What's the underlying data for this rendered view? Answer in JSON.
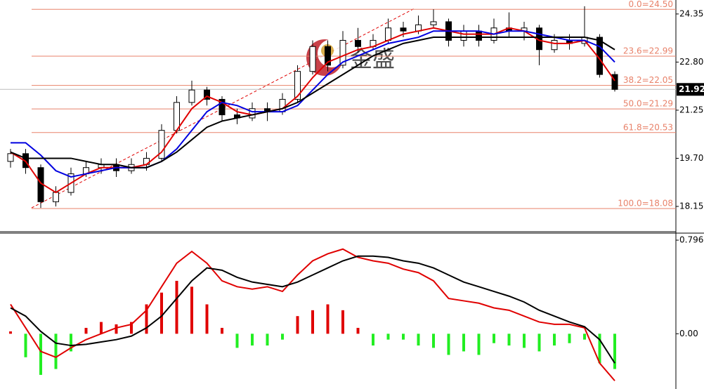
{
  "watermark": "金盛",
  "chart_data": [
    {
      "type": "candlestick",
      "ylim": [
        17.38,
        24.8
      ],
      "yticks": [
        24.35,
        {
          "value": 22.8,
          "label": "22.80"
        },
        21.25,
        {
          "value": 19.7,
          "label": "19.70"
        },
        18.15
      ],
      "current_price": 21.92,
      "fib_color": "#e8826a",
      "fib_levels": [
        {
          "value": 24.5,
          "label": "0.0=24.50"
        },
        {
          "value": 22.99,
          "label": "23.6=22.99"
        },
        {
          "value": 22.05,
          "label": "38.2=22.05"
        },
        {
          "value": 21.29,
          "label": "50.0=21.29"
        },
        {
          "value": 20.53,
          "label": "61.8=20.53"
        },
        {
          "value": 18.08,
          "label": "100.0=18.08"
        }
      ],
      "open": [
        19.6,
        19.85,
        19.4,
        18.3,
        18.6,
        19.2,
        19.4,
        19.5,
        19.3,
        19.5,
        19.7,
        20.6,
        21.5,
        21.9,
        21.6,
        21.1,
        21.0,
        21.3,
        21.2,
        21.6,
        22.5,
        23.3,
        22.7,
        23.5,
        23.3,
        23.5,
        23.9,
        23.8,
        24.0,
        24.1,
        23.5,
        23.8,
        23.5,
        23.9,
        23.8,
        23.9,
        23.2,
        23.5,
        23.4,
        23.6,
        22.4
      ],
      "high": [
        20.0,
        20.0,
        19.5,
        18.8,
        19.4,
        19.6,
        19.7,
        19.7,
        19.7,
        19.9,
        20.8,
        21.7,
        22.2,
        22.0,
        21.7,
        21.3,
        21.5,
        21.5,
        21.8,
        22.7,
        23.5,
        23.5,
        23.8,
        23.9,
        23.7,
        24.2,
        24.1,
        24.3,
        24.5,
        24.2,
        24.0,
        24.0,
        24.2,
        24.4,
        24.1,
        24.0,
        23.7,
        23.7,
        24.6,
        23.7,
        22.5
      ],
      "low": [
        19.4,
        19.2,
        18.1,
        18.15,
        18.5,
        19.1,
        19.2,
        19.1,
        19.2,
        19.3,
        19.6,
        20.5,
        21.4,
        21.4,
        20.9,
        20.8,
        20.9,
        20.9,
        21.1,
        21.5,
        22.4,
        22.5,
        22.6,
        23.1,
        23.2,
        23.4,
        23.6,
        23.7,
        23.9,
        23.3,
        23.3,
        23.3,
        23.4,
        23.6,
        23.5,
        22.7,
        23.1,
        23.2,
        23.3,
        22.3,
        21.85
      ],
      "close": [
        19.85,
        19.4,
        18.3,
        18.6,
        19.2,
        19.4,
        19.5,
        19.3,
        19.5,
        19.7,
        20.6,
        21.5,
        21.9,
        21.6,
        21.1,
        21.0,
        21.3,
        21.2,
        21.6,
        22.5,
        23.3,
        22.7,
        23.5,
        23.3,
        23.5,
        23.9,
        23.8,
        24.0,
        24.1,
        23.5,
        23.8,
        23.5,
        23.9,
        23.8,
        23.9,
        23.2,
        23.5,
        23.4,
        23.6,
        22.4,
        21.92
      ],
      "ma_lines": [
        {
          "color": "#e00000",
          "values": [
            19.9,
            19.6,
            18.9,
            18.6,
            18.9,
            19.2,
            19.4,
            19.4,
            19.4,
            19.5,
            19.9,
            20.6,
            21.3,
            21.7,
            21.5,
            21.2,
            21.1,
            21.2,
            21.3,
            21.7,
            22.3,
            22.8,
            23.0,
            23.2,
            23.3,
            23.5,
            23.7,
            23.8,
            23.9,
            23.8,
            23.7,
            23.7,
            23.7,
            23.9,
            23.8,
            23.5,
            23.4,
            23.4,
            23.5,
            22.9,
            22.2
          ]
        },
        {
          "color": "#0000e0",
          "values": [
            20.2,
            20.2,
            19.8,
            19.3,
            19.1,
            19.2,
            19.3,
            19.4,
            19.4,
            19.4,
            19.6,
            20.0,
            20.6,
            21.2,
            21.5,
            21.4,
            21.2,
            21.2,
            21.2,
            21.4,
            21.9,
            22.4,
            22.8,
            23.0,
            23.2,
            23.4,
            23.5,
            23.6,
            23.8,
            23.8,
            23.8,
            23.8,
            23.7,
            23.8,
            23.8,
            23.7,
            23.6,
            23.5,
            23.5,
            23.3,
            22.8
          ]
        },
        {
          "color": "#000000",
          "values": [
            19.9,
            19.7,
            19.7,
            19.7,
            19.7,
            19.6,
            19.5,
            19.5,
            19.4,
            19.4,
            19.6,
            19.9,
            20.3,
            20.7,
            20.9,
            21.0,
            21.1,
            21.2,
            21.3,
            21.5,
            21.8,
            22.1,
            22.4,
            22.7,
            23.0,
            23.2,
            23.4,
            23.5,
            23.6,
            23.6,
            23.6,
            23.6,
            23.6,
            23.6,
            23.6,
            23.6,
            23.6,
            23.6,
            23.6,
            23.5,
            23.2
          ]
        }
      ]
    },
    {
      "type": "macd",
      "ylim": [
        -0.47,
        0.85
      ],
      "yticks": [
        0.796,
        {
          "value": 0,
          "label": "0.00"
        }
      ],
      "up_color": "#e00000",
      "down_color": "#22ee22",
      "histogram": [
        0.02,
        -0.2,
        -0.35,
        -0.3,
        -0.15,
        0.05,
        0.1,
        0.08,
        0.1,
        0.25,
        0.35,
        0.45,
        0.4,
        0.25,
        0.05,
        -0.12,
        -0.1,
        -0.1,
        -0.05,
        0.15,
        0.2,
        0.25,
        0.2,
        0.05,
        -0.1,
        -0.05,
        -0.05,
        -0.1,
        -0.12,
        -0.18,
        -0.15,
        -0.18,
        -0.08,
        -0.1,
        -0.12,
        -0.15,
        -0.1,
        -0.08,
        -0.05,
        -0.25,
        -0.3
      ],
      "lines": [
        {
          "color": "#e00000",
          "values": [
            0.25,
            0.05,
            -0.15,
            -0.2,
            -0.12,
            -0.05,
            0.0,
            0.05,
            0.08,
            0.2,
            0.4,
            0.6,
            0.7,
            0.6,
            0.45,
            0.4,
            0.38,
            0.4,
            0.36,
            0.5,
            0.62,
            0.68,
            0.72,
            0.65,
            0.62,
            0.6,
            0.55,
            0.52,
            0.45,
            0.3,
            0.28,
            0.26,
            0.22,
            0.2,
            0.15,
            0.1,
            0.08,
            0.08,
            0.05,
            -0.25,
            -0.4
          ]
        },
        {
          "color": "#000000",
          "values": [
            0.22,
            0.15,
            0.02,
            -0.08,
            -0.1,
            -0.09,
            -0.07,
            -0.05,
            -0.02,
            0.05,
            0.15,
            0.3,
            0.45,
            0.56,
            0.54,
            0.48,
            0.44,
            0.42,
            0.4,
            0.44,
            0.5,
            0.56,
            0.62,
            0.66,
            0.66,
            0.65,
            0.62,
            0.6,
            0.56,
            0.5,
            0.44,
            0.4,
            0.36,
            0.32,
            0.27,
            0.2,
            0.15,
            0.1,
            0.06,
            -0.05,
            -0.25
          ]
        }
      ]
    }
  ]
}
